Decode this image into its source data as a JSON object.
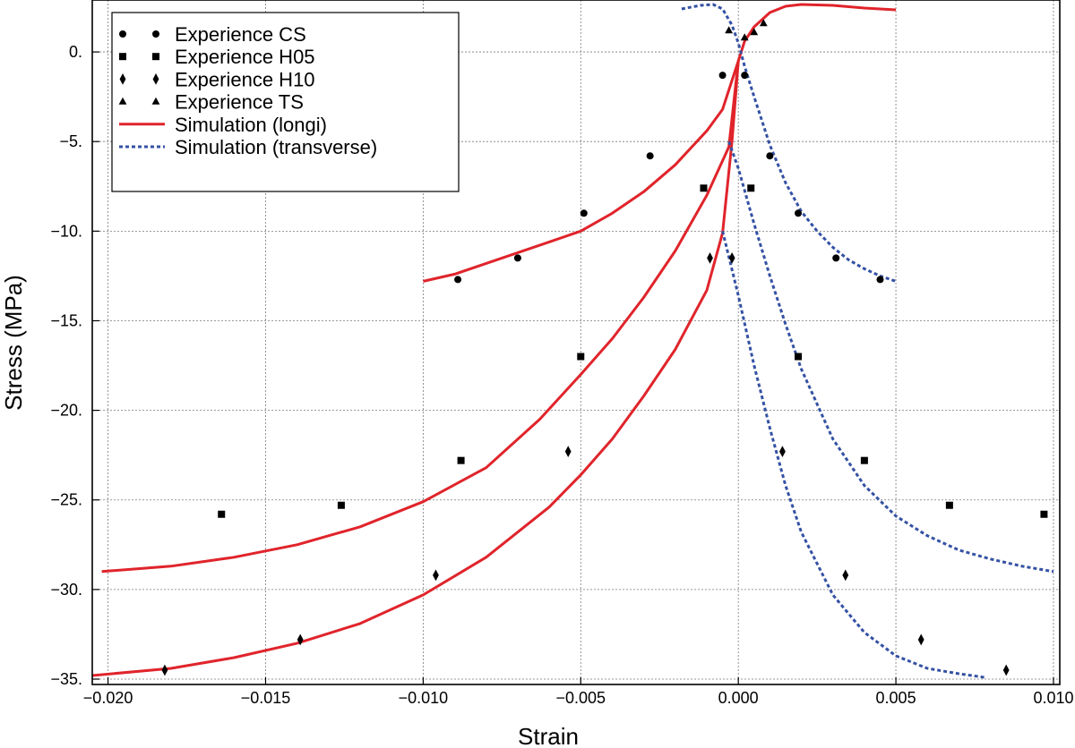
{
  "chart_data": {
    "type": "scatter",
    "xlabel": "Strain",
    "ylabel": "Stress (MPa)",
    "xlim": [
      -0.0205,
      0.0102
    ],
    "ylim": [
      -35.3,
      2.9
    ],
    "grid": true,
    "legend_position": "top-left",
    "x_ticks": [
      {
        "value": -0.02,
        "label": "−0.020"
      },
      {
        "value": -0.015,
        "label": "−0.015"
      },
      {
        "value": -0.01,
        "label": "−0.010"
      },
      {
        "value": -0.005,
        "label": "−0.005"
      },
      {
        "value": 0.0,
        "label": "0.000"
      },
      {
        "value": 0.005,
        "label": "0.005"
      },
      {
        "value": 0.01,
        "label": "0.010"
      }
    ],
    "y_ticks": [
      {
        "value": 0,
        "label": "0."
      },
      {
        "value": -5,
        "label": "−5."
      },
      {
        "value": -10,
        "label": "−10."
      },
      {
        "value": -15,
        "label": "−15."
      },
      {
        "value": -20,
        "label": "−20."
      },
      {
        "value": -25,
        "label": "−25."
      },
      {
        "value": -30,
        "label": "−30."
      },
      {
        "value": -35,
        "label": "−35."
      }
    ],
    "series": [
      {
        "name": "Experience CS",
        "kind": "scatter",
        "marker": "circle",
        "color": "#000000",
        "points": [
          {
            "x": -0.0089,
            "y": -12.7
          },
          {
            "x": -0.007,
            "y": -11.5
          },
          {
            "x": -0.0049,
            "y": -9.0
          },
          {
            "x": -0.0028,
            "y": -5.8
          },
          {
            "x": -0.0005,
            "y": -1.3
          },
          {
            "x": 0.0002,
            "y": -1.3
          },
          {
            "x": 0.001,
            "y": -5.8
          },
          {
            "x": 0.0019,
            "y": -9.0
          },
          {
            "x": 0.0031,
            "y": -11.5
          },
          {
            "x": 0.0045,
            "y": -12.7
          }
        ]
      },
      {
        "name": "Experience H05",
        "kind": "scatter",
        "marker": "square",
        "color": "#000000",
        "points": [
          {
            "x": -0.0164,
            "y": -25.8
          },
          {
            "x": -0.0126,
            "y": -25.3
          },
          {
            "x": -0.0088,
            "y": -22.8
          },
          {
            "x": -0.005,
            "y": -17.0
          },
          {
            "x": -0.0011,
            "y": -7.6
          },
          {
            "x": 0.0004,
            "y": -7.6
          },
          {
            "x": 0.0019,
            "y": -17.0
          },
          {
            "x": 0.004,
            "y": -22.8
          },
          {
            "x": 0.0067,
            "y": -25.3
          },
          {
            "x": 0.0097,
            "y": -25.8
          }
        ]
      },
      {
        "name": "Experience H10",
        "kind": "scatter",
        "marker": "diamond",
        "color": "#000000",
        "points": [
          {
            "x": -0.0182,
            "y": -34.5
          },
          {
            "x": -0.0139,
            "y": -32.8
          },
          {
            "x": -0.0096,
            "y": -29.2
          },
          {
            "x": -0.0054,
            "y": -22.3
          },
          {
            "x": -0.0009,
            "y": -11.5
          },
          {
            "x": -0.0002,
            "y": -11.5
          },
          {
            "x": 0.0014,
            "y": -22.3
          },
          {
            "x": 0.0034,
            "y": -29.2
          },
          {
            "x": 0.0058,
            "y": -32.8
          },
          {
            "x": 0.0085,
            "y": -34.5
          }
        ]
      },
      {
        "name": "Experience TS",
        "kind": "scatter",
        "marker": "triangle",
        "color": "#000000",
        "points": [
          {
            "x": -0.0003,
            "y": 1.2
          },
          {
            "x": 0.0002,
            "y": 0.8
          },
          {
            "x": 0.0005,
            "y": 1.1
          },
          {
            "x": 0.0008,
            "y": 1.6
          }
        ]
      },
      {
        "name": "Simulation (longi)",
        "kind": "line",
        "dash": "solid",
        "color": "#e0242b",
        "curves": [
          [
            {
              "x": -0.01,
              "y": -12.8
            },
            {
              "x": -0.009,
              "y": -12.4
            },
            {
              "x": -0.008,
              "y": -11.8
            },
            {
              "x": -0.007,
              "y": -11.2
            },
            {
              "x": -0.006,
              "y": -10.6
            },
            {
              "x": -0.005,
              "y": -10.0
            },
            {
              "x": -0.004,
              "y": -9.0
            },
            {
              "x": -0.003,
              "y": -7.8
            },
            {
              "x": -0.002,
              "y": -6.3
            },
            {
              "x": -0.001,
              "y": -4.4
            },
            {
              "x": -0.0005,
              "y": -3.2
            },
            {
              "x": 0.0,
              "y": -0.5
            },
            {
              "x": 0.0002,
              "y": 0.6
            },
            {
              "x": 0.0005,
              "y": 1.4
            },
            {
              "x": 0.001,
              "y": 2.2
            },
            {
              "x": 0.0015,
              "y": 2.55
            },
            {
              "x": 0.002,
              "y": 2.65
            },
            {
              "x": 0.003,
              "y": 2.6
            },
            {
              "x": 0.004,
              "y": 2.45
            },
            {
              "x": 0.005,
              "y": 2.35
            }
          ],
          [
            {
              "x": -0.0202,
              "y": -29.0
            },
            {
              "x": -0.018,
              "y": -28.7
            },
            {
              "x": -0.016,
              "y": -28.2
            },
            {
              "x": -0.014,
              "y": -27.5
            },
            {
              "x": -0.012,
              "y": -26.5
            },
            {
              "x": -0.01,
              "y": -25.1
            },
            {
              "x": -0.008,
              "y": -23.2
            },
            {
              "x": -0.0063,
              "y": -20.5
            },
            {
              "x": -0.005,
              "y": -18.0
            },
            {
              "x": -0.004,
              "y": -16.0
            },
            {
              "x": -0.003,
              "y": -13.7
            },
            {
              "x": -0.002,
              "y": -11.1
            },
            {
              "x": -0.001,
              "y": -8.0
            },
            {
              "x": -0.0003,
              "y": -5.3
            },
            {
              "x": 0.0,
              "y": -0.5
            }
          ],
          [
            {
              "x": -0.0205,
              "y": -34.8
            },
            {
              "x": -0.018,
              "y": -34.4
            },
            {
              "x": -0.016,
              "y": -33.8
            },
            {
              "x": -0.014,
              "y": -33.0
            },
            {
              "x": -0.012,
              "y": -31.9
            },
            {
              "x": -0.01,
              "y": -30.3
            },
            {
              "x": -0.008,
              "y": -28.2
            },
            {
              "x": -0.006,
              "y": -25.4
            },
            {
              "x": -0.005,
              "y": -23.6
            },
            {
              "x": -0.004,
              "y": -21.6
            },
            {
              "x": -0.003,
              "y": -19.2
            },
            {
              "x": -0.002,
              "y": -16.6
            },
            {
              "x": -0.001,
              "y": -13.3
            },
            {
              "x": -0.0005,
              "y": -10.1
            },
            {
              "x": -0.0002,
              "y": -5.0
            },
            {
              "x": 0.0,
              "y": -0.5
            }
          ]
        ]
      },
      {
        "name": "Simulation  (transverse)",
        "kind": "line",
        "dash": "dotted",
        "color": "#3451a4",
        "curves": [
          [
            {
              "x": -0.0018,
              "y": 2.4
            },
            {
              "x": -0.0012,
              "y": 2.6
            },
            {
              "x": -0.0008,
              "y": 2.65
            },
            {
              "x": -0.0005,
              "y": 2.4
            },
            {
              "x": -0.0002,
              "y": 1.5
            },
            {
              "x": 0.0,
              "y": 0.5
            },
            {
              "x": 0.0002,
              "y": -0.8
            },
            {
              "x": 0.0005,
              "y": -2.5
            },
            {
              "x": 0.001,
              "y": -5.2
            },
            {
              "x": 0.0015,
              "y": -7.3
            },
            {
              "x": 0.002,
              "y": -8.9
            },
            {
              "x": 0.0025,
              "y": -10.0
            },
            {
              "x": 0.003,
              "y": -10.9
            },
            {
              "x": 0.0035,
              "y": -11.6
            },
            {
              "x": 0.004,
              "y": -12.1
            },
            {
              "x": 0.0045,
              "y": -12.5
            },
            {
              "x": 0.005,
              "y": -12.8
            }
          ],
          [
            {
              "x": -0.0003,
              "y": -5.0
            },
            {
              "x": 0.0,
              "y": -6.5
            },
            {
              "x": 0.0005,
              "y": -9.6
            },
            {
              "x": 0.001,
              "y": -12.5
            },
            {
              "x": 0.0015,
              "y": -15.2
            },
            {
              "x": 0.002,
              "y": -17.7
            },
            {
              "x": 0.003,
              "y": -21.6
            },
            {
              "x": 0.004,
              "y": -24.2
            },
            {
              "x": 0.005,
              "y": -25.9
            },
            {
              "x": 0.006,
              "y": -27.0
            },
            {
              "x": 0.007,
              "y": -27.8
            },
            {
              "x": 0.008,
              "y": -28.3
            },
            {
              "x": 0.009,
              "y": -28.7
            },
            {
              "x": 0.01,
              "y": -29.0
            }
          ],
          [
            {
              "x": -0.0005,
              "y": -10.0
            },
            {
              "x": 0.0,
              "y": -13.6
            },
            {
              "x": 0.0005,
              "y": -17.5
            },
            {
              "x": 0.001,
              "y": -21.0
            },
            {
              "x": 0.0015,
              "y": -24.2
            },
            {
              "x": 0.002,
              "y": -26.8
            },
            {
              "x": 0.003,
              "y": -30.3
            },
            {
              "x": 0.004,
              "y": -32.4
            },
            {
              "x": 0.005,
              "y": -33.7
            },
            {
              "x": 0.006,
              "y": -34.4
            },
            {
              "x": 0.007,
              "y": -34.7
            },
            {
              "x": 0.0078,
              "y": -34.9
            }
          ]
        ]
      }
    ]
  }
}
